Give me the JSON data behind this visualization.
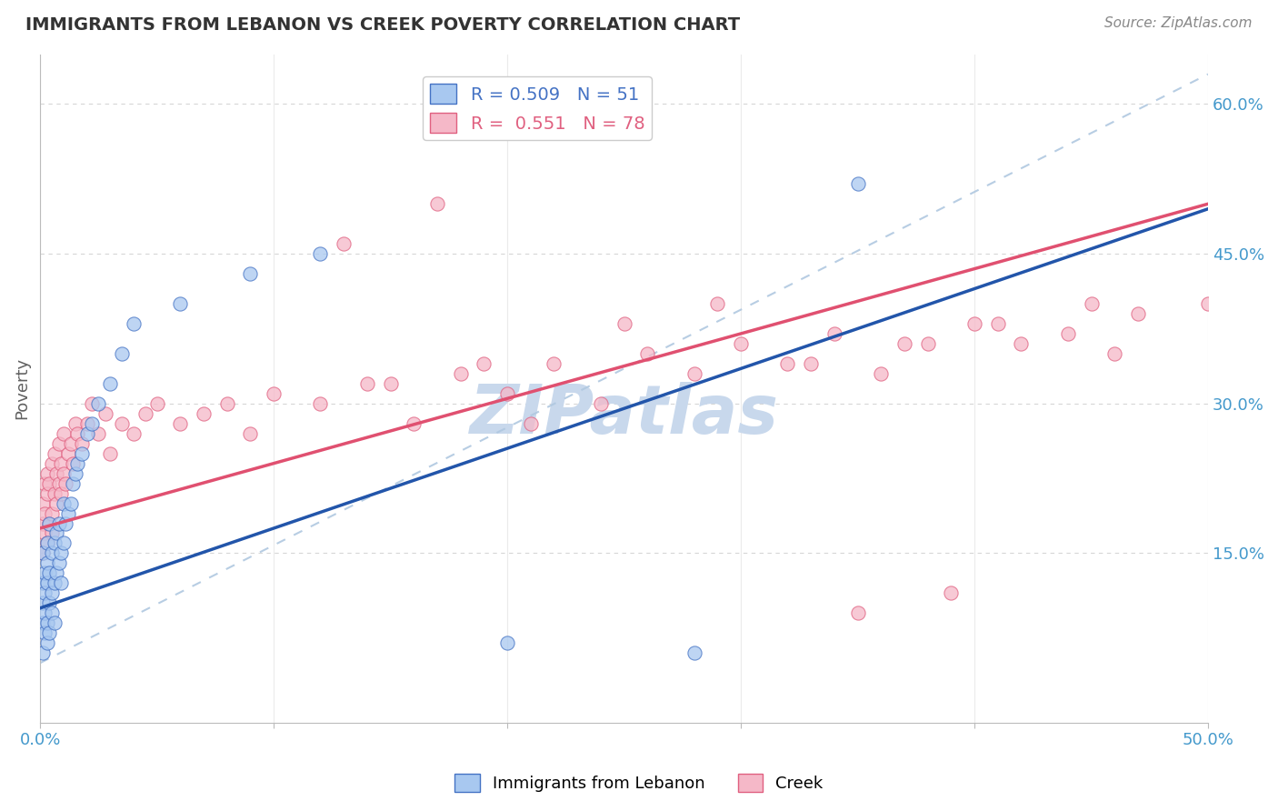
{
  "title": "IMMIGRANTS FROM LEBANON VS CREEK POVERTY CORRELATION CHART",
  "source_text": "Source: ZipAtlas.com",
  "ylabel": "Poverty",
  "xlim": [
    0.0,
    0.5
  ],
  "ylim": [
    -0.02,
    0.65
  ],
  "plot_ylim": [
    -0.02,
    0.65
  ],
  "xtick_positions": [
    0.0,
    0.1,
    0.2,
    0.3,
    0.4,
    0.5
  ],
  "xticklabels": [
    "0.0%",
    "",
    "",
    "",
    "",
    "50.0%"
  ],
  "yticks_right": [
    0.15,
    0.3,
    0.45,
    0.6
  ],
  "ytick_right_labels": [
    "15.0%",
    "30.0%",
    "45.0%",
    "60.0%"
  ],
  "legend_blue_R": "0.509",
  "legend_blue_N": "51",
  "legend_pink_R": "0.551",
  "legend_pink_N": "78",
  "blue_fill_color": "#A8C8F0",
  "pink_fill_color": "#F5B8C8",
  "blue_edge_color": "#4472C4",
  "pink_edge_color": "#E06080",
  "blue_line_color": "#2255AA",
  "pink_line_color": "#E05070",
  "diagonal_line_color": "#B0C8E0",
  "grid_color": "#D8D8D8",
  "grid_h_color": "#CCCCCC",
  "watermark_color": "#C8D8EC",
  "background_color": "#FFFFFF",
  "title_color": "#333333",
  "source_color": "#888888",
  "tick_label_color": "#4499CC",
  "blue_intercept": 0.095,
  "blue_slope": 0.8,
  "pink_intercept": 0.175,
  "pink_slope": 0.65,
  "blue_scatter_x": [
    0.001,
    0.001,
    0.001,
    0.001,
    0.001,
    0.002,
    0.002,
    0.002,
    0.002,
    0.003,
    0.003,
    0.003,
    0.003,
    0.003,
    0.004,
    0.004,
    0.004,
    0.004,
    0.005,
    0.005,
    0.005,
    0.006,
    0.006,
    0.006,
    0.007,
    0.007,
    0.008,
    0.008,
    0.009,
    0.009,
    0.01,
    0.01,
    0.011,
    0.012,
    0.013,
    0.014,
    0.015,
    0.016,
    0.018,
    0.02,
    0.022,
    0.025,
    0.03,
    0.035,
    0.04,
    0.06,
    0.09,
    0.12,
    0.2,
    0.28,
    0.35
  ],
  "blue_scatter_y": [
    0.08,
    0.1,
    0.12,
    0.05,
    0.15,
    0.07,
    0.13,
    0.09,
    0.11,
    0.14,
    0.08,
    0.12,
    0.16,
    0.06,
    0.1,
    0.13,
    0.18,
    0.07,
    0.11,
    0.15,
    0.09,
    0.12,
    0.16,
    0.08,
    0.13,
    0.17,
    0.14,
    0.18,
    0.15,
    0.12,
    0.16,
    0.2,
    0.18,
    0.19,
    0.2,
    0.22,
    0.23,
    0.24,
    0.25,
    0.27,
    0.28,
    0.3,
    0.32,
    0.35,
    0.38,
    0.4,
    0.43,
    0.45,
    0.06,
    0.05,
    0.52
  ],
  "pink_scatter_x": [
    0.001,
    0.001,
    0.001,
    0.002,
    0.002,
    0.002,
    0.003,
    0.003,
    0.003,
    0.004,
    0.004,
    0.005,
    0.005,
    0.005,
    0.006,
    0.006,
    0.007,
    0.007,
    0.008,
    0.008,
    0.009,
    0.009,
    0.01,
    0.01,
    0.011,
    0.012,
    0.013,
    0.014,
    0.015,
    0.016,
    0.018,
    0.02,
    0.022,
    0.025,
    0.028,
    0.03,
    0.035,
    0.04,
    0.045,
    0.05,
    0.06,
    0.07,
    0.08,
    0.09,
    0.1,
    0.12,
    0.14,
    0.16,
    0.18,
    0.2,
    0.22,
    0.24,
    0.26,
    0.28,
    0.3,
    0.32,
    0.34,
    0.36,
    0.38,
    0.4,
    0.42,
    0.44,
    0.46,
    0.47,
    0.5,
    0.15,
    0.19,
    0.25,
    0.29,
    0.33,
    0.37,
    0.41,
    0.45,
    0.13,
    0.17,
    0.21,
    0.35,
    0.39
  ],
  "pink_scatter_y": [
    0.18,
    0.2,
    0.15,
    0.22,
    0.17,
    0.19,
    0.21,
    0.16,
    0.23,
    0.18,
    0.22,
    0.19,
    0.24,
    0.17,
    0.21,
    0.25,
    0.2,
    0.23,
    0.22,
    0.26,
    0.21,
    0.24,
    0.23,
    0.27,
    0.22,
    0.25,
    0.26,
    0.24,
    0.28,
    0.27,
    0.26,
    0.28,
    0.3,
    0.27,
    0.29,
    0.25,
    0.28,
    0.27,
    0.29,
    0.3,
    0.28,
    0.29,
    0.3,
    0.27,
    0.31,
    0.3,
    0.32,
    0.28,
    0.33,
    0.31,
    0.34,
    0.3,
    0.35,
    0.33,
    0.36,
    0.34,
    0.37,
    0.33,
    0.36,
    0.38,
    0.36,
    0.37,
    0.35,
    0.39,
    0.4,
    0.32,
    0.34,
    0.38,
    0.4,
    0.34,
    0.36,
    0.38,
    0.4,
    0.46,
    0.5,
    0.28,
    0.09,
    0.11
  ]
}
